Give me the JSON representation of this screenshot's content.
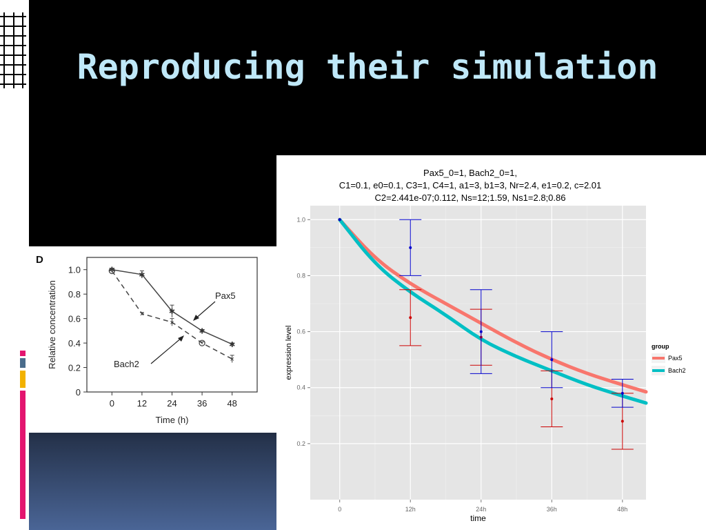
{
  "slide": {
    "title": "Reproducing their simulation",
    "accent_colors": [
      "#e3156f",
      "#4a6c8c",
      "#f2b200",
      "#e3156f"
    ]
  },
  "figure_d": {
    "panel_label": "D",
    "series_labels": {
      "pax5": "Pax5",
      "bach2": "Bach2"
    }
  },
  "simulation_plot": {
    "title_lines": [
      "Pax5_0=1, Bach2_0=1,",
      "C1=0.1, e0=0.1, C3=1, C4=1, a1=3, b1=3, Nr=2.4, e1=0.2, c=2.01",
      "C2=2.441e-07;0.112, Ns=12;1.59, Ns1=2.8;0.86"
    ],
    "legend_title": "group"
  },
  "chart_data": [
    {
      "type": "line",
      "panel_label": "D",
      "xlabel": "Time (h)",
      "ylabel": "Relative concentration",
      "x": [
        0,
        12,
        24,
        36,
        48
      ],
      "xticks": [
        "0",
        "12",
        "24",
        "36",
        "48"
      ],
      "yticks": [
        "0",
        "0.2",
        "0.4",
        "0.6",
        "0.8",
        "1.0"
      ],
      "xlim": [
        -10,
        58
      ],
      "ylim": [
        0,
        1.1
      ],
      "grid": false,
      "series": [
        {
          "name": "Pax5",
          "line": "solid",
          "marker": "*",
          "values": [
            1.0,
            0.96,
            0.66,
            0.5,
            0.39
          ],
          "errors": [
            0.01,
            0.03,
            0.05,
            0.01,
            0.01
          ]
        },
        {
          "name": "Bach2",
          "line": "dashed",
          "marker": "o/x",
          "values": [
            0.99,
            0.64,
            0.57,
            0.4,
            0.27
          ],
          "errors": [
            0.01,
            0.01,
            0.03,
            0.01,
            0.03
          ]
        }
      ]
    },
    {
      "type": "line",
      "title": "Pax5_0=1, Bach2_0=1,\nC1=0.1, e0=0.1, C3=1, C4=1, a1=3, b1=3, Nr=2.4, e1=0.2, c=2.01\nC2=2.441e-07;0.112, Ns=12;1.59, Ns1=2.8;0.86",
      "xlabel": "time",
      "ylabel": "expression level",
      "xticks": [
        "0",
        "12h",
        "24h",
        "36h",
        "48h"
      ],
      "yticks": [
        "0.2",
        "0.4",
        "0.6",
        "0.8",
        "1.0"
      ],
      "xlim": [
        -5,
        52
      ],
      "ylim": [
        0.0,
        1.05
      ],
      "grid": true,
      "legend": {
        "title": "group",
        "position": "right"
      },
      "series": [
        {
          "name": "Pax5",
          "color": "#f8766d",
          "x": [
            0,
            6,
            12,
            18,
            24,
            30,
            36,
            42,
            48,
            52
          ],
          "values": [
            1.0,
            0.86,
            0.77,
            0.7,
            0.63,
            0.56,
            0.5,
            0.45,
            0.41,
            0.385
          ]
        },
        {
          "name": "Bach2",
          "color": "#00bfc4",
          "x": [
            0,
            6,
            12,
            18,
            24,
            30,
            36,
            42,
            48,
            52
          ],
          "values": [
            1.0,
            0.84,
            0.74,
            0.66,
            0.57,
            0.51,
            0.46,
            0.41,
            0.37,
            0.345
          ]
        }
      ],
      "observed": [
        {
          "name": "Pax5 data",
          "color": "#cc0000",
          "x": [
            0,
            12,
            24,
            36,
            48
          ],
          "values": [
            1.0,
            0.65,
            0.58,
            0.36,
            0.28
          ],
          "err_low": [
            1.0,
            0.55,
            0.48,
            0.26,
            0.18
          ],
          "err_high": [
            1.0,
            0.75,
            0.68,
            0.46,
            0.38
          ]
        },
        {
          "name": "Bach2 data",
          "color": "#0000cc",
          "x": [
            0,
            12,
            24,
            36,
            48
          ],
          "values": [
            1.0,
            0.9,
            0.6,
            0.5,
            0.38
          ],
          "err_low": [
            1.0,
            0.8,
            0.45,
            0.4,
            0.33
          ],
          "err_high": [
            1.0,
            1.0,
            0.75,
            0.6,
            0.43
          ]
        }
      ]
    }
  ]
}
